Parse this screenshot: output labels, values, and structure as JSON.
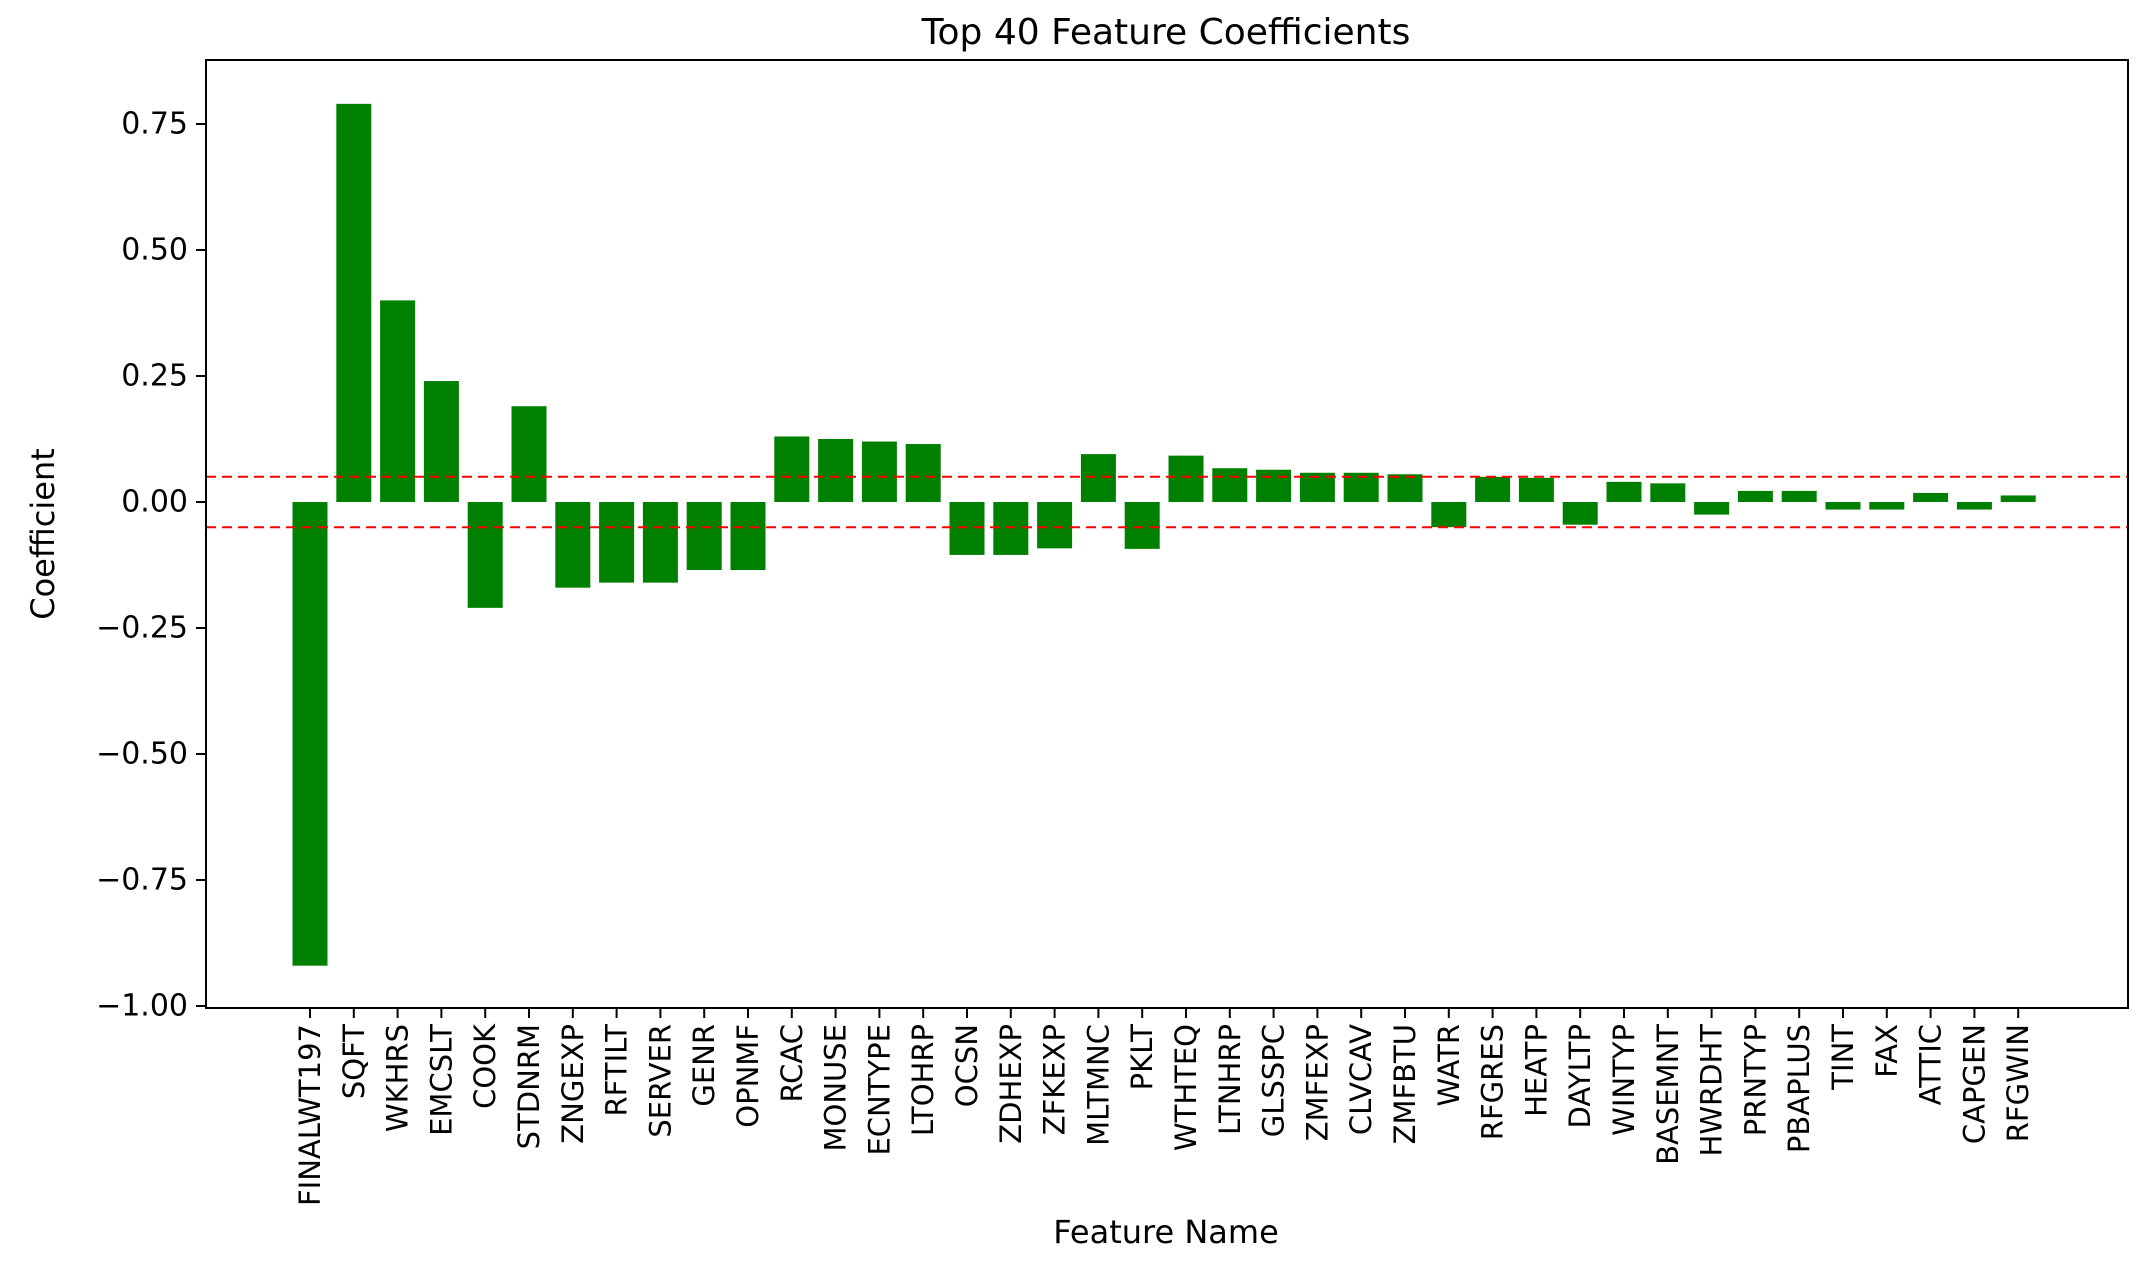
{
  "chart_data": {
    "type": "bar",
    "title": "Top 40 Feature Coefficients",
    "xlabel": "Feature Name",
    "ylabel": "Coefficient",
    "ylim": [
      -1.0,
      0.875
    ],
    "yticks": [
      0.75,
      0.5,
      0.25,
      0.0,
      -0.25,
      -0.5,
      -0.75,
      -1.0
    ],
    "ytick_labels": [
      "0.75",
      "0.50",
      "0.25",
      "0.00",
      "−0.25",
      "−0.50",
      "−0.75",
      "−1.00"
    ],
    "grid": false,
    "bar_color": "#008000",
    "threshold_lines": {
      "values": [
        0.05,
        -0.05
      ],
      "color": "#ff0000",
      "style": "dashed"
    },
    "categories": [
      "FINALWT197",
      "SQFT",
      "WKHRS",
      "EMCSLT",
      "COOK",
      "STDNRM",
      "ZNGEXP",
      "RFTILT",
      "SERVER",
      "GENR",
      "OPNMF",
      "RCAC",
      "MONUSE",
      "ECNTYPE",
      "LTOHRP",
      "OCSN",
      "ZDHEXP",
      "ZFKEXP",
      "MLTMNC",
      "PKLT",
      "WTHTEQ",
      "LTNHRP",
      "GLSSPC",
      "ZMFEXP",
      "CLVCAV",
      "ZMFBTU",
      "WATR",
      "RFGRES",
      "HEATP",
      "DAYLTP",
      "WINTYP",
      "BASEMNT",
      "HWRDHT",
      "PRNTYP",
      "PBAPLUS",
      "TINT",
      "FAX",
      "ATTIC",
      "CAPGEN",
      "RFGWIN"
    ],
    "values": [
      -0.92,
      0.79,
      0.4,
      0.24,
      -0.21,
      0.19,
      -0.17,
      -0.16,
      -0.16,
      -0.135,
      -0.135,
      0.13,
      0.125,
      0.12,
      0.115,
      -0.105,
      -0.105,
      -0.092,
      0.095,
      -0.093,
      0.092,
      0.067,
      0.064,
      0.058,
      0.058,
      0.055,
      -0.05,
      0.05,
      0.048,
      -0.045,
      0.04,
      0.037,
      -0.025,
      0.022,
      0.022,
      -0.015,
      -0.015,
      0.018,
      -0.015,
      0.013
    ]
  }
}
